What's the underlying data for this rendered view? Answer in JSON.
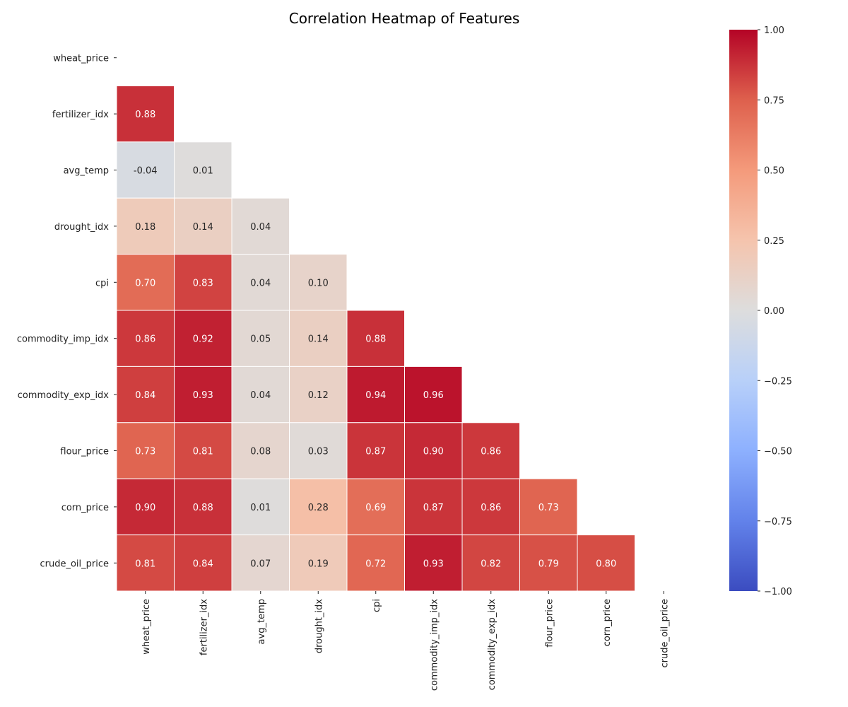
{
  "chart_data": {
    "type": "heatmap",
    "title": "Correlation Heatmap of Features",
    "labels": [
      "wheat_price",
      "fertilizer_idx",
      "avg_temp",
      "drought_idx",
      "cpi",
      "commodity_imp_idx",
      "commodity_exp_idx",
      "flour_price",
      "corn_price",
      "crude_oil_price"
    ],
    "mask": "upper-triangle-including-diagonal",
    "matrix": [
      [
        null,
        null,
        null,
        null,
        null,
        null,
        null,
        null,
        null,
        null
      ],
      [
        0.88,
        null,
        null,
        null,
        null,
        null,
        null,
        null,
        null,
        null
      ],
      [
        -0.04,
        0.01,
        null,
        null,
        null,
        null,
        null,
        null,
        null,
        null
      ],
      [
        0.18,
        0.14,
        0.04,
        null,
        null,
        null,
        null,
        null,
        null,
        null
      ],
      [
        0.7,
        0.83,
        0.04,
        0.1,
        null,
        null,
        null,
        null,
        null,
        null
      ],
      [
        0.86,
        0.92,
        0.05,
        0.14,
        0.88,
        null,
        null,
        null,
        null,
        null
      ],
      [
        0.84,
        0.93,
        0.04,
        0.12,
        0.94,
        0.96,
        null,
        null,
        null,
        null
      ],
      [
        0.73,
        0.81,
        0.08,
        0.03,
        0.87,
        0.9,
        0.86,
        null,
        null,
        null
      ],
      [
        0.9,
        0.88,
        0.01,
        0.28,
        0.69,
        0.87,
        0.86,
        0.73,
        null,
        null
      ],
      [
        0.81,
        0.84,
        0.07,
        0.19,
        0.72,
        0.93,
        0.82,
        0.79,
        0.8,
        null
      ]
    ],
    "value_format": "0.00",
    "colormap": "coolwarm",
    "vmin": -1.0,
    "vmax": 1.0,
    "colorbar_ticks": [
      "1.00",
      "0.75",
      "0.50",
      "0.25",
      "0.00",
      "−0.25",
      "−0.50",
      "−0.75",
      "−1.00"
    ],
    "colorbar_tick_values": [
      1.0,
      0.75,
      0.5,
      0.25,
      0.0,
      -0.25,
      -0.5,
      -0.75,
      -1.0
    ],
    "grid_lines": "white",
    "legend": "colorbar-right"
  }
}
